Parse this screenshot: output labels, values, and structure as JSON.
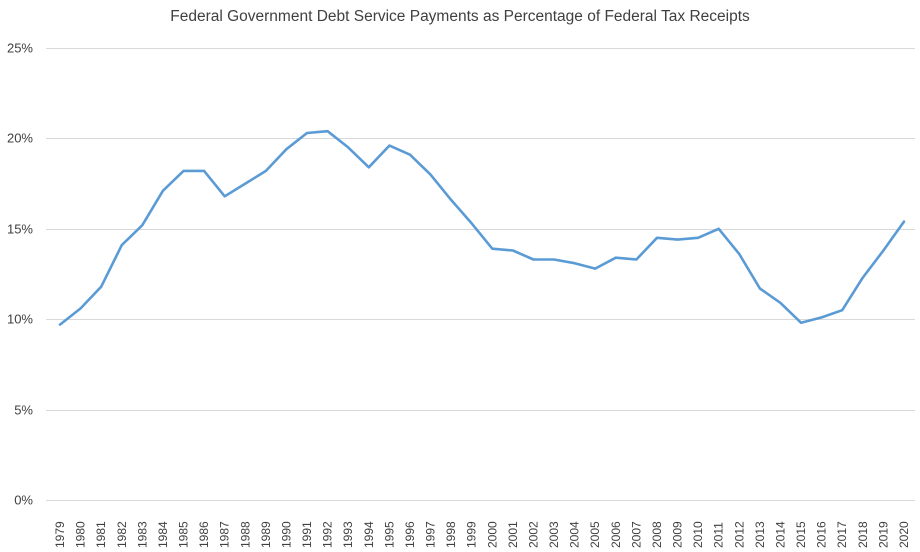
{
  "chart_data": {
    "type": "line",
    "title": "Federal Government Debt Service Payments as Percentage of Federal Tax Receipts",
    "xlabel": "",
    "ylabel": "",
    "ylim": [
      0,
      25
    ],
    "y_ticks": [
      "0%",
      "5%",
      "10%",
      "15%",
      "20%",
      "25%"
    ],
    "y_tick_values": [
      0,
      5,
      10,
      15,
      20,
      25
    ],
    "grid": "horizontal",
    "legend": "none",
    "categories": [
      "1979",
      "1980",
      "1981",
      "1982",
      "1983",
      "1984",
      "1985",
      "1986",
      "1987",
      "1988",
      "1989",
      "1990",
      "1991",
      "1992",
      "1993",
      "1994",
      "1995",
      "1996",
      "1997",
      "1998",
      "1999",
      "2000",
      "2001",
      "2002",
      "2003",
      "2004",
      "2005",
      "2006",
      "2007",
      "2008",
      "2009",
      "2010",
      "2011",
      "2012",
      "2013",
      "2014",
      "2015",
      "2016",
      "2017",
      "2018",
      "2019",
      "2020"
    ],
    "series": [
      {
        "color": "#5b9bd5",
        "values": [
          9.7,
          10.6,
          11.8,
          14.1,
          15.2,
          17.1,
          18.2,
          18.2,
          16.8,
          17.5,
          18.2,
          19.4,
          20.3,
          20.4,
          19.5,
          18.4,
          19.6,
          19.1,
          18.0,
          16.6,
          15.3,
          13.9,
          13.8,
          13.3,
          13.3,
          13.1,
          12.8,
          13.4,
          13.3,
          14.5,
          14.4,
          14.5,
          15.0,
          13.6,
          11.7,
          10.9,
          9.8,
          10.1,
          10.5,
          12.3,
          13.8,
          15.4
        ]
      }
    ]
  }
}
